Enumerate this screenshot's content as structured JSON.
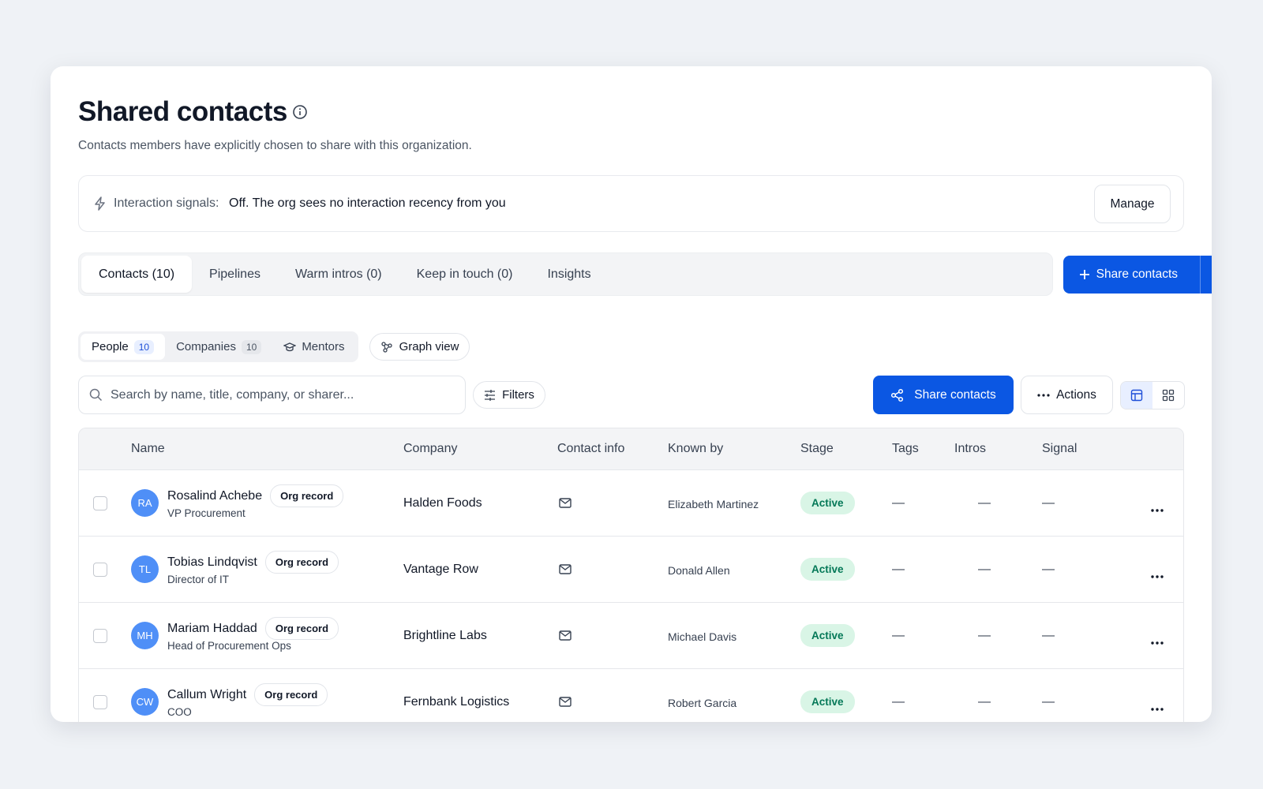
{
  "header": {
    "title": "Shared contacts",
    "subtitle": "Contacts members have explicitly chosen to share with this organization."
  },
  "signals": {
    "label": "Interaction signals:",
    "status": "Off. The org sees no interaction recency from you",
    "button": "Manage"
  },
  "tabs": [
    "Contacts (10)",
    "Pipelines",
    "Warm intros (0)",
    "Keep in touch (0)",
    "Insights"
  ],
  "primary_button": "Share contacts",
  "segments": [
    {
      "label": "People",
      "count": 10
    },
    {
      "label": "Companies",
      "count": 10
    },
    {
      "label": "Mentors"
    }
  ],
  "graph_view": "Graph view",
  "search_placeholder": "Search by name, title, company, or sharer...",
  "filters": "Filters",
  "share_button": "Share contacts",
  "actions": "Actions",
  "table": {
    "columns": [
      "Name",
      "Company",
      "Contact info",
      "Known by",
      "Stage",
      "Tags",
      "Intros",
      "Signal"
    ],
    "rows": [
      {
        "initials": "RA",
        "name": "Rosalind Achebe",
        "badge": "Org record",
        "title": "VP Procurement",
        "company": "Halden Foods",
        "known_by": "Elizabeth Martinez",
        "stage": "Active",
        "tags": "—",
        "intros": "—",
        "signal": "—"
      },
      {
        "initials": "TL",
        "name": "Tobias Lindqvist",
        "badge": "Org record",
        "title": "Director of IT",
        "company": "Vantage Row",
        "known_by": "Donald Allen",
        "stage": "Active",
        "tags": "—",
        "intros": "—",
        "signal": "—"
      },
      {
        "initials": "MH",
        "name": "Mariam Haddad",
        "badge": "Org record",
        "title": "Head of Procurement Ops",
        "company": "Brightline Labs",
        "known_by": "Michael Davis",
        "stage": "Active",
        "tags": "—",
        "intros": "—",
        "signal": "—"
      },
      {
        "initials": "CW",
        "name": "Callum Wright",
        "badge": "Org record",
        "title": "COO",
        "company": "Fernbank Logistics",
        "known_by": "Robert Garcia",
        "stage": "Active",
        "tags": "—",
        "intros": "—",
        "signal": "—"
      }
    ]
  }
}
